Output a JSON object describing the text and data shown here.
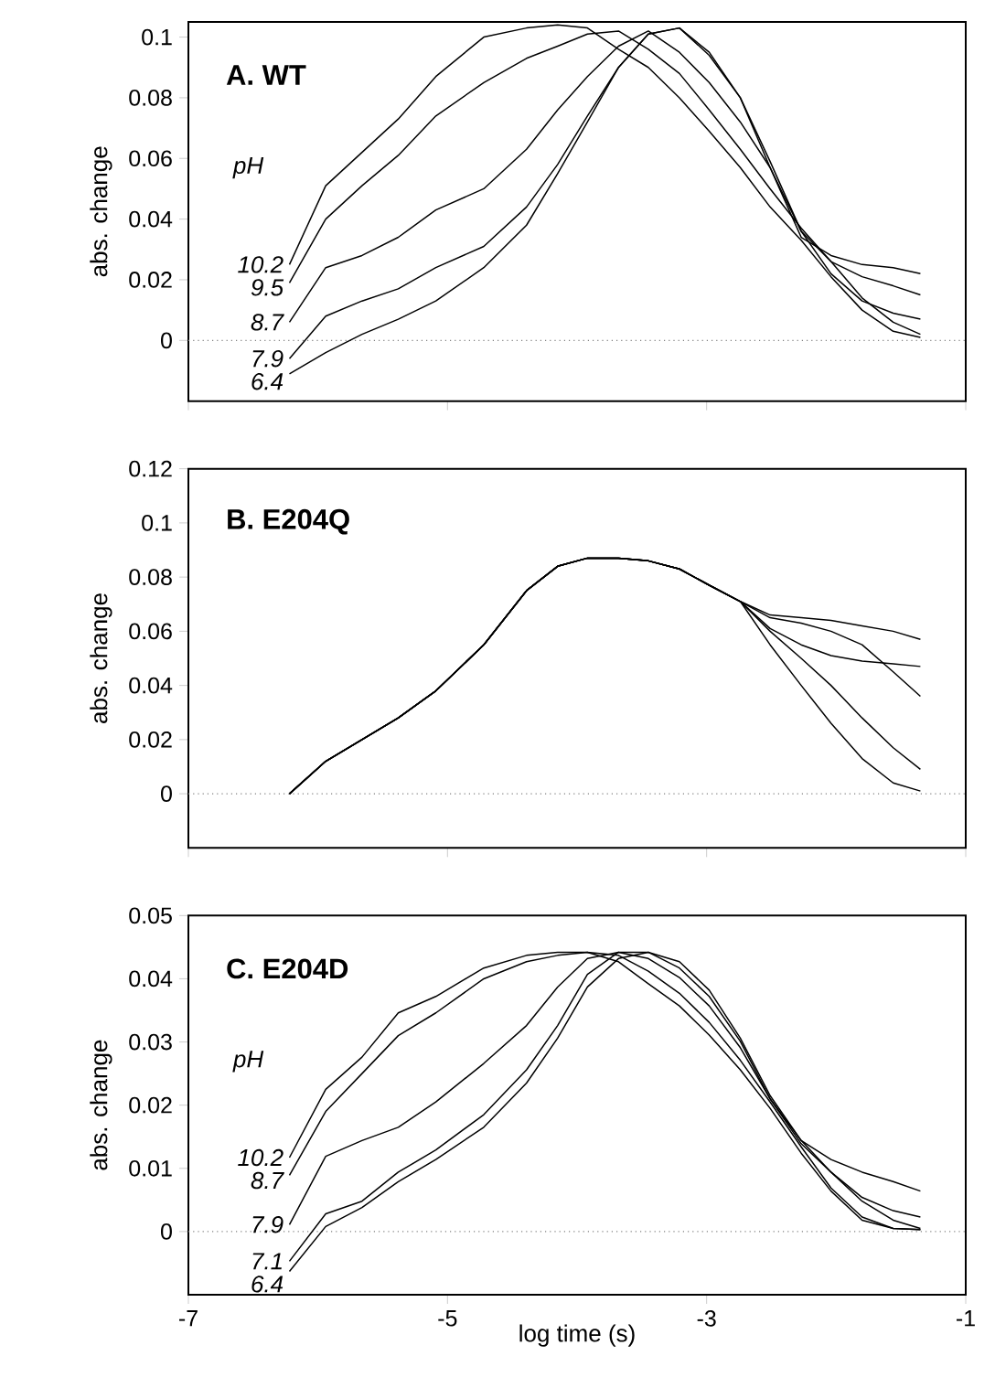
{
  "chart_data": [
    {
      "type": "line",
      "title": "A. WT",
      "ylabel": "abs. change",
      "legend_title": "pH",
      "tick_labels": "y",
      "x": [
        -6.22,
        -5.94,
        -5.66,
        -5.38,
        -5.09,
        -4.72,
        -4.39,
        -4.15,
        -3.92,
        -3.68,
        -3.45,
        -3.21,
        -2.98,
        -2.74,
        -2.51,
        -2.27,
        -2.04,
        -1.8,
        -1.56,
        -1.35
      ],
      "series": [
        {
          "name": "10.2",
          "color": "#000000",
          "values": [
            0.025,
            0.051,
            0.062,
            0.073,
            0.087,
            0.1,
            0.103,
            0.104,
            0.103,
            0.096,
            0.09,
            0.08,
            0.069,
            0.057,
            0.044,
            0.033,
            0.021,
            0.01,
            0.003,
            0.001
          ]
        },
        {
          "name": "9.5",
          "color": "#000000",
          "values": [
            0.019,
            0.04,
            0.051,
            0.061,
            0.074,
            0.085,
            0.093,
            0.097,
            0.101,
            0.102,
            0.096,
            0.088,
            0.076,
            0.063,
            0.05,
            0.037,
            0.026,
            0.014,
            0.006,
            0.002
          ]
        },
        {
          "name": "8.7",
          "color": "#000000",
          "values": [
            0.006,
            0.024,
            0.028,
            0.034,
            0.043,
            0.05,
            0.063,
            0.076,
            0.087,
            0.097,
            0.102,
            0.095,
            0.085,
            0.072,
            0.057,
            0.036,
            0.022,
            0.013,
            0.009,
            0.007
          ]
        },
        {
          "name": "7.9",
          "color": "#000000",
          "values": [
            -0.006,
            0.008,
            0.013,
            0.017,
            0.024,
            0.031,
            0.044,
            0.058,
            0.074,
            0.09,
            0.101,
            0.103,
            0.094,
            0.08,
            0.059,
            0.036,
            0.026,
            0.021,
            0.018,
            0.015
          ]
        },
        {
          "name": "6.4",
          "color": "#000000",
          "values": [
            -0.011,
            -0.004,
            0.002,
            0.007,
            0.013,
            0.024,
            0.038,
            0.055,
            0.072,
            0.09,
            0.101,
            0.103,
            0.095,
            0.08,
            0.057,
            0.034,
            0.028,
            0.025,
            0.024,
            0.022
          ]
        }
      ],
      "xlim": [
        -7,
        -1
      ],
      "ylim": [
        -0.02,
        0.105
      ],
      "xticks": [
        -7,
        -5,
        -3,
        -1
      ],
      "yticks": [
        0,
        0.02,
        0.04,
        0.06,
        0.08,
        0.1
      ],
      "ref_lines": [
        {
          "axis": "y",
          "value": 0,
          "color": "#808080",
          "line_style": "dotted"
        }
      ]
    },
    {
      "type": "line",
      "title": "B. E204Q",
      "ylabel": "abs. change",
      "tick_labels": "y",
      "x": [
        -6.22,
        -5.94,
        -5.66,
        -5.38,
        -5.09,
        -4.72,
        -4.39,
        -4.15,
        -3.92,
        -3.68,
        -3.45,
        -3.21,
        -2.98,
        -2.74,
        -2.51,
        -2.27,
        -2.04,
        -1.8,
        -1.56,
        -1.35
      ],
      "series": [
        {
          "color": "#000000",
          "values": [
            0.0,
            0.012,
            0.02,
            0.028,
            0.038,
            0.055,
            0.075,
            0.084,
            0.087,
            0.087,
            0.086,
            0.083,
            0.077,
            0.071,
            0.066,
            0.065,
            0.064,
            0.062,
            0.06,
            0.057
          ]
        },
        {
          "color": "#000000",
          "values": [
            0.0,
            0.012,
            0.02,
            0.028,
            0.038,
            0.055,
            0.075,
            0.084,
            0.087,
            0.087,
            0.086,
            0.083,
            0.077,
            0.071,
            0.061,
            0.055,
            0.051,
            0.049,
            0.048,
            0.047
          ]
        },
        {
          "color": "#000000",
          "values": [
            0.0,
            0.012,
            0.02,
            0.028,
            0.038,
            0.055,
            0.075,
            0.084,
            0.087,
            0.087,
            0.086,
            0.083,
            0.077,
            0.071,
            0.065,
            0.063,
            0.06,
            0.055,
            0.045,
            0.036
          ]
        },
        {
          "color": "#000000",
          "values": [
            0.0,
            0.012,
            0.02,
            0.028,
            0.038,
            0.055,
            0.075,
            0.084,
            0.087,
            0.087,
            0.086,
            0.083,
            0.077,
            0.071,
            0.06,
            0.05,
            0.04,
            0.028,
            0.017,
            0.009
          ]
        },
        {
          "color": "#000000",
          "values": [
            0.0,
            0.012,
            0.02,
            0.028,
            0.038,
            0.055,
            0.075,
            0.084,
            0.087,
            0.087,
            0.086,
            0.083,
            0.077,
            0.071,
            0.055,
            0.04,
            0.026,
            0.013,
            0.004,
            0.001
          ]
        }
      ],
      "xlim": [
        -7,
        -1
      ],
      "ylim": [
        -0.02,
        0.12
      ],
      "xticks": [
        -7,
        -5,
        -3,
        -1
      ],
      "yticks": [
        0,
        0.02,
        0.04,
        0.06,
        0.08,
        0.1,
        0.12
      ],
      "ref_lines": [
        {
          "axis": "y",
          "value": 0,
          "color": "#808080",
          "line_style": "dotted"
        }
      ]
    },
    {
      "type": "line",
      "title": "C. E204D",
      "ylabel": "abs. change",
      "xlabel": "log time (s)",
      "legend_title": "pH",
      "x": [
        -6.22,
        -5.94,
        -5.66,
        -5.38,
        -5.09,
        -4.72,
        -4.39,
        -4.15,
        -3.92,
        -3.68,
        -3.45,
        -3.21,
        -2.98,
        -2.74,
        -2.51,
        -2.27,
        -2.04,
        -1.8,
        -1.56,
        -1.35
      ],
      "series": [
        {
          "name": "10.2",
          "color": "#000000",
          "values": [
            0.0117,
            0.0225,
            0.0276,
            0.0346,
            0.0372,
            0.0417,
            0.0437,
            0.0442,
            0.0442,
            0.0427,
            0.0392,
            0.0357,
            0.0311,
            0.0256,
            0.0195,
            0.0124,
            0.0064,
            0.0018,
            0.0005,
            0.0003
          ]
        },
        {
          "name": "8.7",
          "color": "#000000",
          "values": [
            0.0089,
            0.019,
            0.025,
            0.031,
            0.0346,
            0.04,
            0.0427,
            0.0437,
            0.0442,
            0.0437,
            0.0412,
            0.0377,
            0.0331,
            0.0271,
            0.0205,
            0.0134,
            0.0069,
            0.0023,
            0.0005,
            0.0003
          ]
        },
        {
          "name": "7.9",
          "color": "#000000",
          "values": [
            0.0011,
            0.0119,
            0.0144,
            0.0165,
            0.0205,
            0.0266,
            0.0326,
            0.0387,
            0.0432,
            0.0442,
            0.0432,
            0.0402,
            0.0357,
            0.0291,
            0.021,
            0.0144,
            0.0094,
            0.0048,
            0.0018,
            0.0005
          ]
        },
        {
          "name": "7.1",
          "color": "#000000",
          "values": [
            -0.0047,
            0.0028,
            0.0048,
            0.0094,
            0.0129,
            0.0185,
            0.0256,
            0.0326,
            0.0407,
            0.0442,
            0.0442,
            0.0417,
            0.0372,
            0.0301,
            0.021,
            0.0139,
            0.0094,
            0.0054,
            0.0033,
            0.0023
          ]
        },
        {
          "name": "6.4",
          "color": "#000000",
          "values": [
            -0.0063,
            0.0008,
            0.0038,
            0.0079,
            0.0114,
            0.0165,
            0.0235,
            0.0306,
            0.0387,
            0.0432,
            0.0442,
            0.0427,
            0.0382,
            0.0306,
            0.0215,
            0.0144,
            0.0114,
            0.0094,
            0.0079,
            0.0064
          ]
        }
      ],
      "xlim": [
        -7,
        -1
      ],
      "ylim": [
        -0.01,
        0.05
      ],
      "xticks": [
        -7,
        -5,
        -3,
        -1
      ],
      "yticks": [
        0,
        0.01,
        0.02,
        0.03,
        0.04,
        0.05
      ],
      "ref_lines": [
        {
          "axis": "y",
          "value": 0,
          "color": "#808080",
          "line_style": "dotted"
        }
      ]
    }
  ]
}
